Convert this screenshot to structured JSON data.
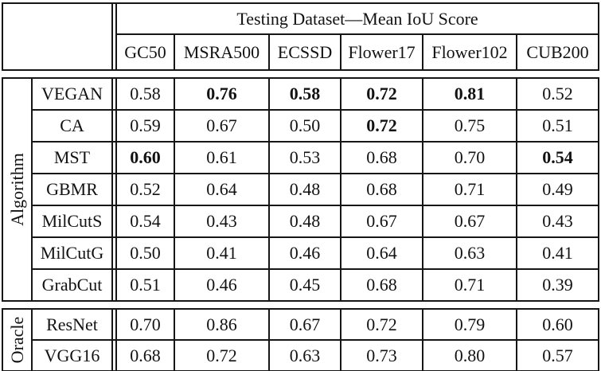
{
  "header": {
    "group_title": "Testing Dataset—Mean IoU Score",
    "columns": [
      "GC50",
      "MSRA500",
      "ECSSD",
      "Flower17",
      "Flower102",
      "CUB200"
    ]
  },
  "sections": [
    {
      "label": "Algorithm",
      "rows": [
        {
          "name": "VEGAN",
          "cells": [
            {
              "v": "0.58",
              "bold": false
            },
            {
              "v": "0.76",
              "bold": true
            },
            {
              "v": "0.58",
              "bold": true
            },
            {
              "v": "0.72",
              "bold": true
            },
            {
              "v": "0.81",
              "bold": true
            },
            {
              "v": "0.52",
              "bold": false
            }
          ]
        },
        {
          "name": "CA",
          "cells": [
            {
              "v": "0.59",
              "bold": false
            },
            {
              "v": "0.67",
              "bold": false
            },
            {
              "v": "0.50",
              "bold": false
            },
            {
              "v": "0.72",
              "bold": true
            },
            {
              "v": "0.75",
              "bold": false
            },
            {
              "v": "0.51",
              "bold": false
            }
          ]
        },
        {
          "name": "MST",
          "cells": [
            {
              "v": "0.60",
              "bold": true
            },
            {
              "v": "0.61",
              "bold": false
            },
            {
              "v": "0.53",
              "bold": false
            },
            {
              "v": "0.68",
              "bold": false
            },
            {
              "v": "0.70",
              "bold": false
            },
            {
              "v": "0.54",
              "bold": true
            }
          ]
        },
        {
          "name": "GBMR",
          "cells": [
            {
              "v": "0.52",
              "bold": false
            },
            {
              "v": "0.64",
              "bold": false
            },
            {
              "v": "0.48",
              "bold": false
            },
            {
              "v": "0.68",
              "bold": false
            },
            {
              "v": "0.71",
              "bold": false
            },
            {
              "v": "0.49",
              "bold": false
            }
          ]
        },
        {
          "name": "MilCutS",
          "cells": [
            {
              "v": "0.54",
              "bold": false
            },
            {
              "v": "0.43",
              "bold": false
            },
            {
              "v": "0.48",
              "bold": false
            },
            {
              "v": "0.67",
              "bold": false
            },
            {
              "v": "0.67",
              "bold": false
            },
            {
              "v": "0.43",
              "bold": false
            }
          ]
        },
        {
          "name": "MilCutG",
          "cells": [
            {
              "v": "0.50",
              "bold": false
            },
            {
              "v": "0.41",
              "bold": false
            },
            {
              "v": "0.46",
              "bold": false
            },
            {
              "v": "0.64",
              "bold": false
            },
            {
              "v": "0.63",
              "bold": false
            },
            {
              "v": "0.41",
              "bold": false
            }
          ]
        },
        {
          "name": "GrabCut",
          "cells": [
            {
              "v": "0.51",
              "bold": false
            },
            {
              "v": "0.46",
              "bold": false
            },
            {
              "v": "0.45",
              "bold": false
            },
            {
              "v": "0.68",
              "bold": false
            },
            {
              "v": "0.71",
              "bold": false
            },
            {
              "v": "0.39",
              "bold": false
            }
          ]
        }
      ]
    },
    {
      "label": "Oracle",
      "rows": [
        {
          "name": "ResNet",
          "cells": [
            {
              "v": "0.70",
              "bold": false
            },
            {
              "v": "0.86",
              "bold": false
            },
            {
              "v": "0.67",
              "bold": false
            },
            {
              "v": "0.72",
              "bold": false
            },
            {
              "v": "0.79",
              "bold": false
            },
            {
              "v": "0.60",
              "bold": false
            }
          ]
        },
        {
          "name": "VGG16",
          "cells": [
            {
              "v": "0.68",
              "bold": false
            },
            {
              "v": "0.72",
              "bold": false
            },
            {
              "v": "0.63",
              "bold": false
            },
            {
              "v": "0.73",
              "bold": false
            },
            {
              "v": "0.80",
              "bold": false
            },
            {
              "v": "0.57",
              "bold": false
            }
          ]
        }
      ]
    }
  ]
}
